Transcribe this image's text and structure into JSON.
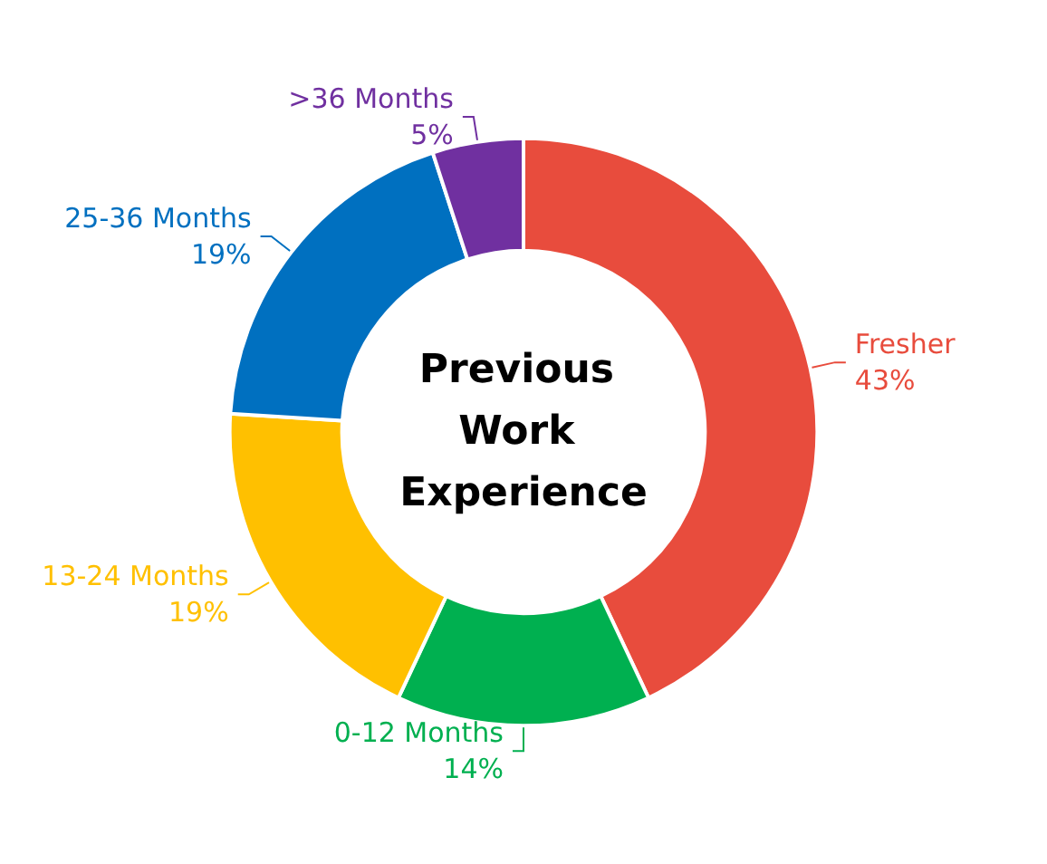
{
  "chart_data": {
    "type": "donut",
    "title": "Previous Work Experience",
    "categories": [
      "Fresher",
      "0-12 Months",
      "13-24 Months",
      "25-36 Months",
      ">36 Months"
    ],
    "values": [
      43,
      14,
      19,
      19,
      5
    ],
    "value_labels": [
      "43%",
      "14%",
      "19%",
      "19%",
      "5%"
    ],
    "colors": [
      "#e84c3d",
      "#00b050",
      "#ffc000",
      "#0070c0",
      "#7030a0"
    ]
  }
}
